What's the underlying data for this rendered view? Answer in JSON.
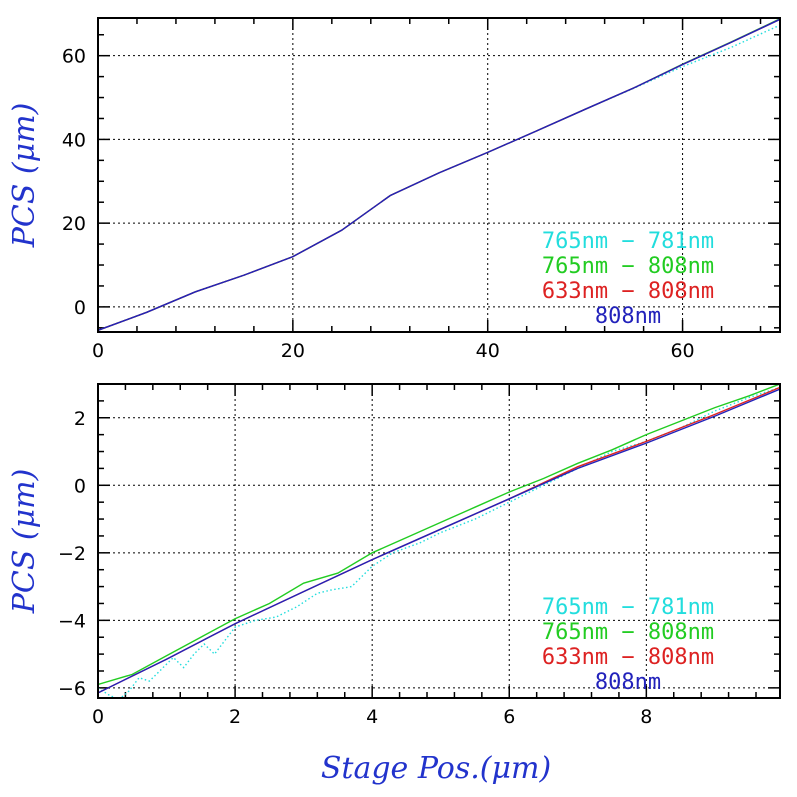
{
  "figure": {
    "xlabel": "Stage Pos.(μm)",
    "legend_labels": [
      "765nm − 781nm",
      "765nm − 808nm",
      "633nm − 808nm",
      "808nm"
    ]
  },
  "chart_data": [
    {
      "type": "line",
      "title": "",
      "xlabel": "",
      "ylabel": "PCS (μm)",
      "xlim": [
        0,
        70
      ],
      "ylim": [
        -6,
        69
      ],
      "xticks": [
        0,
        20,
        40,
        60
      ],
      "yticks": [
        0,
        20,
        40,
        60
      ],
      "grid": true,
      "legend": "bottom-right",
      "series": [
        {
          "name": "765nm − 781nm",
          "color": "#22dddd",
          "style": "dotted",
          "x": [
            0,
            5,
            10,
            15,
            20,
            25,
            30,
            35,
            40,
            45,
            50,
            55,
            60,
            65,
            70
          ],
          "y": [
            -5.6,
            -1.3,
            3.6,
            7.6,
            12.0,
            18.3,
            26.6,
            32.0,
            36.9,
            42.0,
            47.2,
            52.2,
            57.4,
            62.0,
            67.3
          ]
        },
        {
          "name": "765nm − 808nm",
          "color": "#22cc22",
          "style": "solid",
          "x": [
            0,
            5,
            10,
            15,
            20,
            25,
            30,
            35,
            40,
            45,
            50,
            55,
            60,
            65,
            70
          ],
          "y": [
            -5.6,
            -1.3,
            3.6,
            7.6,
            12.0,
            18.3,
            26.6,
            32.0,
            36.9,
            42.0,
            47.2,
            52.3,
            58.0,
            63.3,
            68.8
          ]
        },
        {
          "name": "633nm − 808nm",
          "color": "#dd2222",
          "style": "solid",
          "x": [
            0,
            5,
            10,
            15,
            20,
            25,
            30,
            35,
            40,
            45,
            50,
            55,
            60,
            65,
            70
          ],
          "y": [
            -5.6,
            -1.3,
            3.6,
            7.6,
            12.0,
            18.3,
            26.6,
            32.0,
            36.9,
            42.0,
            47.2,
            52.3,
            57.9,
            63.2,
            68.7
          ]
        },
        {
          "name": "808nm",
          "color": "#2222bb",
          "style": "solid",
          "x": [
            0,
            5,
            10,
            15,
            20,
            25,
            30,
            35,
            40,
            45,
            50,
            55,
            60,
            65,
            70
          ],
          "y": [
            -5.6,
            -1.3,
            3.6,
            7.6,
            12.0,
            18.3,
            26.6,
            32.0,
            36.9,
            42.0,
            47.2,
            52.3,
            57.9,
            63.2,
            68.7
          ]
        }
      ]
    },
    {
      "type": "line",
      "title": "",
      "xlabel": "Stage Pos.(μm)",
      "ylabel": "PCS (μm)",
      "xlim": [
        0,
        9.95
      ],
      "ylim": [
        -6.3,
        3.0
      ],
      "xticks": [
        0,
        2,
        4,
        6,
        8
      ],
      "yticks": [
        -6,
        -4,
        -2,
        0,
        2
      ],
      "grid": true,
      "legend": "bottom-right",
      "series": [
        {
          "name": "765nm − 781nm",
          "color": "#22dddd",
          "style": "dotted",
          "x": [
            0,
            0.15,
            0.3,
            0.45,
            0.6,
            0.75,
            0.9,
            1.0,
            1.1,
            1.25,
            1.4,
            1.55,
            1.7,
            1.85,
            2.0,
            2.3,
            2.6,
            2.9,
            3.2,
            3.4,
            3.7,
            4.0,
            4.3,
            4.7,
            5.0,
            5.5,
            6.0,
            6.5,
            7.0,
            7.5,
            8.0,
            8.5,
            9.0,
            9.5,
            9.95
          ],
          "y": [
            -6.0,
            -6.2,
            -6.35,
            -6.1,
            -5.7,
            -5.8,
            -5.5,
            -5.3,
            -5.1,
            -5.4,
            -5.0,
            -4.7,
            -5.0,
            -4.6,
            -4.2,
            -4.0,
            -3.9,
            -3.6,
            -3.2,
            -3.1,
            -3.0,
            -2.4,
            -2.0,
            -1.7,
            -1.4,
            -1.0,
            -0.5,
            0.0,
            0.5,
            1.0,
            1.3,
            1.7,
            2.2,
            2.6,
            2.9
          ]
        },
        {
          "name": "765nm − 808nm",
          "color": "#22cc22",
          "style": "solid",
          "x": [
            0,
            0.5,
            1.0,
            1.5,
            2.0,
            2.5,
            3.0,
            3.5,
            4.0,
            4.5,
            5.0,
            5.5,
            6.0,
            6.5,
            7.0,
            7.5,
            8.0,
            8.5,
            9.0,
            9.5,
            9.95
          ],
          "y": [
            -5.9,
            -5.6,
            -5.05,
            -4.5,
            -3.95,
            -3.5,
            -2.9,
            -2.6,
            -2.0,
            -1.55,
            -1.1,
            -0.65,
            -0.2,
            0.2,
            0.65,
            1.05,
            1.5,
            1.9,
            2.3,
            2.65,
            3.0
          ]
        },
        {
          "name": "633nm − 808nm",
          "color": "#dd2222",
          "style": "solid",
          "x": [
            0,
            1.0,
            2.0,
            3.0,
            4.0,
            5.0,
            6.0,
            7.0,
            8.0,
            9.0,
            9.95
          ],
          "y": [
            -6.15,
            -5.15,
            -4.1,
            -3.15,
            -2.2,
            -1.3,
            -0.4,
            0.55,
            1.3,
            2.1,
            2.9
          ]
        },
        {
          "name": "808nm",
          "color": "#2222bb",
          "style": "solid",
          "x": [
            0,
            1.0,
            2.0,
            3.0,
            4.0,
            5.0,
            6.0,
            7.0,
            8.0,
            9.0,
            9.95
          ],
          "y": [
            -6.15,
            -5.15,
            -4.1,
            -3.15,
            -2.2,
            -1.3,
            -0.4,
            0.5,
            1.25,
            2.05,
            2.85
          ]
        }
      ]
    }
  ]
}
